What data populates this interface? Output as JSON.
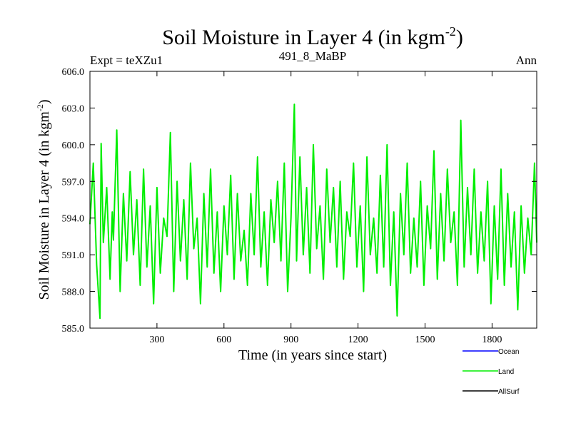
{
  "chart_data": {
    "type": "line",
    "title": "Soil Moisture in Layer 4 (in kgm",
    "title_superscript": "-2",
    "title_close": ")",
    "subtitle_left": "Expt = teXZu1",
    "subtitle_center": "491_8_MaBP",
    "subtitle_right": "Ann",
    "xlabel": "Time (in years since start)",
    "ylabel": "Soil Moisture in Layer 4 (in kgm",
    "ylabel_superscript": "-2",
    "ylabel_close": ")",
    "xlim": [
      0,
      2000
    ],
    "ylim": [
      585.0,
      606.0
    ],
    "xticks": [
      300,
      600,
      900,
      1200,
      1500,
      1800
    ],
    "xtick_labels": [
      "300",
      "600",
      "900",
      "1200",
      "1500",
      "1800"
    ],
    "yticks": [
      585.0,
      588.0,
      591.0,
      594.0,
      597.0,
      600.0,
      603.0,
      606.0
    ],
    "ytick_labels": [
      "585.0",
      "588.0",
      "591.0",
      "594.0",
      "597.0",
      "600.0",
      "603.0",
      "606.0"
    ],
    "series": [
      {
        "name": "Land",
        "color": "#00ee00",
        "x": [
          0,
          15,
          30,
          45,
          50,
          60,
          75,
          90,
          100,
          105,
          120,
          135,
          150,
          165,
          180,
          195,
          210,
          225,
          240,
          255,
          270,
          285,
          300,
          315,
          330,
          345,
          360,
          375,
          390,
          405,
          420,
          435,
          450,
          465,
          480,
          495,
          510,
          525,
          540,
          555,
          570,
          585,
          600,
          615,
          630,
          645,
          660,
          675,
          690,
          705,
          720,
          735,
          750,
          765,
          780,
          795,
          810,
          825,
          840,
          855,
          870,
          885,
          900,
          915,
          925,
          940,
          955,
          970,
          985,
          1000,
          1015,
          1030,
          1045,
          1060,
          1075,
          1090,
          1105,
          1120,
          1135,
          1150,
          1165,
          1180,
          1195,
          1210,
          1225,
          1240,
          1255,
          1270,
          1285,
          1300,
          1315,
          1330,
          1345,
          1360,
          1375,
          1390,
          1405,
          1420,
          1435,
          1450,
          1465,
          1480,
          1495,
          1510,
          1525,
          1540,
          1555,
          1570,
          1585,
          1600,
          1615,
          1630,
          1645,
          1660,
          1675,
          1690,
          1705,
          1720,
          1735,
          1750,
          1765,
          1780,
          1795,
          1810,
          1825,
          1840,
          1855,
          1870,
          1885,
          1900,
          1915,
          1930,
          1945,
          1960,
          1975,
          1990,
          2000
        ],
        "values": [
          593.5,
          598.5,
          590.2,
          585.8,
          600.1,
          592.0,
          596.5,
          589.0,
          594.5,
          592.2,
          601.2,
          588.0,
          596.0,
          590.5,
          597.8,
          591.0,
          595.5,
          588.5,
          598.0,
          590.0,
          595.0,
          587.0,
          596.5,
          589.5,
          594.0,
          592.5,
          601.0,
          588.0,
          597.0,
          590.5,
          595.5,
          589.0,
          598.5,
          591.5,
          594.0,
          587.0,
          596.0,
          590.0,
          598.0,
          589.5,
          594.5,
          588.0,
          595.0,
          591.0,
          597.5,
          589.0,
          596.0,
          590.5,
          593.0,
          588.5,
          596.0,
          591.0,
          599.0,
          590.0,
          594.5,
          588.5,
          595.5,
          592.0,
          597.0,
          590.5,
          598.5,
          588.0,
          594.0,
          603.3,
          590.5,
          599.0,
          591.0,
          596.5,
          589.5,
          600.0,
          591.5,
          595.0,
          589.0,
          598.0,
          592.0,
          596.5,
          590.0,
          597.0,
          589.0,
          594.5,
          592.5,
          598.5,
          590.0,
          595.0,
          588.0,
          599.0,
          591.0,
          594.0,
          589.5,
          597.5,
          590.0,
          600.0,
          588.5,
          594.5,
          586.0,
          596.0,
          591.0,
          598.5,
          589.5,
          594.0,
          590.0,
          597.0,
          588.5,
          595.0,
          591.5,
          599.5,
          589.0,
          596.0,
          590.5,
          598.0,
          592.0,
          594.5,
          588.5,
          602.0,
          590.0,
          596.5,
          591.0,
          598.0,
          589.5,
          594.5,
          590.5,
          597.0,
          587.0,
          595.0,
          589.0,
          598.0,
          588.5,
          596.0,
          590.0,
          594.5,
          586.5,
          595.0,
          589.5,
          594.0,
          591.0,
          598.5,
          592.0
        ]
      }
    ],
    "legend_position": "bottom-right",
    "legend": [
      {
        "label": "Ocean",
        "color": "#0000ff"
      },
      {
        "label": "Land",
        "color": "#00ee00"
      },
      {
        "label": "AllSurf",
        "color": "#000000"
      }
    ]
  }
}
